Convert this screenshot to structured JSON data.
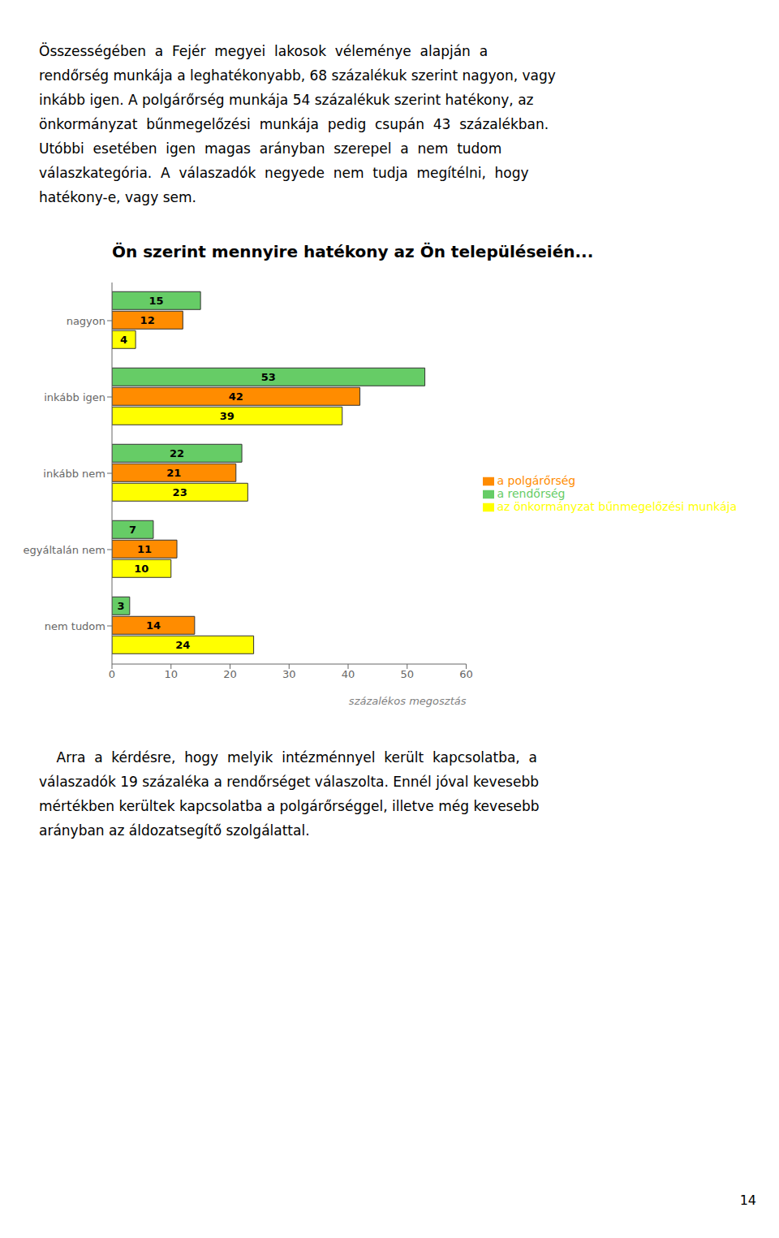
{
  "chart_data": {
    "type": "bar",
    "orientation": "horizontal",
    "title": "Ön szerint mennyire hatékony az Ön településeién...",
    "categories": [
      "nagyon",
      "inkább igen",
      "inkább nem",
      "egyáltalán nem",
      "nem tudom"
    ],
    "series": [
      {
        "name": "a rendőrség",
        "color": "#66CC66",
        "values": [
          15,
          53,
          22,
          7,
          3
        ]
      },
      {
        "name": "a polgárőrség",
        "color": "#FF8C00",
        "values": [
          12,
          42,
          21,
          11,
          14
        ]
      },
      {
        "name": "az önkormányzat bűnmegelőzési munkája",
        "color": "#FFFF00",
        "values": [
          4,
          39,
          23,
          10,
          24
        ]
      }
    ],
    "xlim": [
      0,
      60
    ],
    "xticks": [
      0,
      10,
      20,
      30,
      40,
      50,
      60
    ],
    "xlabel": "százalékos megosztás",
    "data_labels": true,
    "legend": "right",
    "text_above": [
      "Összességében  a  Fejér  megyei  lakosok  véleménye  alapján  a",
      "rendőrség munkája a leghatékonyabb, 68 százalékuk szerint nagyon, vagy",
      "inkább igen. A polgárőrség munkája 54 százalékuk szerint hatékony, az",
      "önkormányzat  bűnmegelőzési  munkája  pedig  csupán  43  százalékban.",
      "Utóbbi  esetében  igen  magas  arányban  szerepel  a  nem  tudom",
      "válaszkategória.  A  válaszadók  negyede  nem  tudja  megítélni,  hogy",
      "hatékony-e, vagy sem."
    ],
    "text_below": [
      "    Arra  a  kérdésre,  hogy  melyik  intézménnyel  került  kapcsolatba,  a",
      "válaszadók 19 százaléka a rendőrséget válaszolta. Ennél jóval kevesebb",
      "mértékben kerültek kapcsolatba a polgárőrséggel, illetve még kevesebb",
      "arányban az áldozatsegítő szolgálattal."
    ],
    "page_number": "14"
  }
}
